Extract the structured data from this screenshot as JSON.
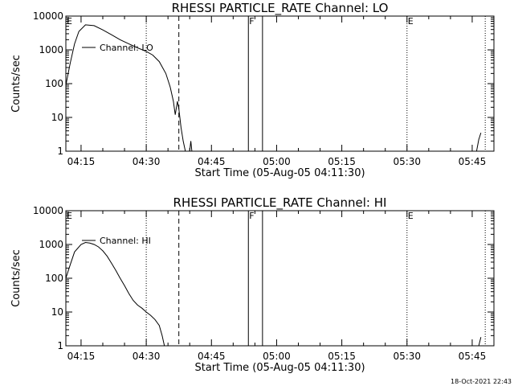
{
  "chart_data": [
    {
      "type": "line",
      "title": "RHESSI PARTICLE_RATE Channel: LO",
      "xlabel": "Start Time (05-Aug-05 04:11:30)",
      "ylabel": "Counts/sec",
      "yscale": "log",
      "ylim": [
        1,
        10000
      ],
      "xlim": [
        "04:11:30",
        "05:50:00"
      ],
      "x_ticks": [
        "04:15",
        "04:30",
        "04:45",
        "05:00",
        "05:15",
        "05:30",
        "05:45"
      ],
      "y_ticks": [
        "1",
        "10",
        "100",
        "1000",
        "10000"
      ],
      "legend": {
        "position": "top-left",
        "entries": [
          "Channel: LO"
        ]
      },
      "series": [
        {
          "name": "Channel: LO",
          "points": [
            [
              "04:11:30",
              90
            ],
            [
              "04:12:30",
              400
            ],
            [
              "04:13:30",
              1500
            ],
            [
              "04:14:30",
              3500
            ],
            [
              "04:16:00",
              5500
            ],
            [
              "04:18:00",
              5200
            ],
            [
              "04:20:00",
              3900
            ],
            [
              "04:22:00",
              2800
            ],
            [
              "04:24:00",
              2000
            ],
            [
              "04:26:00",
              1500
            ],
            [
              "04:28:00",
              1150
            ],
            [
              "04:30:00",
              900
            ],
            [
              "04:31:30",
              700
            ],
            [
              "04:33:00",
              450
            ],
            [
              "04:34:30",
              200
            ],
            [
              "04:35:30",
              80
            ],
            [
              "04:36:15",
              30
            ],
            [
              "04:36:40",
              12
            ],
            [
              "04:37:10",
              30
            ],
            [
              "04:37:30",
              18
            ],
            [
              "04:38:00",
              5
            ],
            [
              "04:38:30",
              2
            ],
            [
              "04:39:00",
              1
            ]
          ]
        },
        {
          "name": "",
          "points": [
            [
              "04:40:00",
              1
            ],
            [
              "04:40:15",
              2
            ],
            [
              "04:40:30",
              1
            ]
          ]
        },
        {
          "name": "",
          "points": [
            [
              "05:46:00",
              1
            ],
            [
              "05:46:30",
              2.2
            ],
            [
              "05:47:00",
              3.5
            ]
          ]
        }
      ],
      "markers": {
        "dotted": [
          "04:30:00",
          "05:30:00",
          "05:48:00"
        ],
        "dashed": [
          "04:37:30"
        ],
        "solid": [
          "04:53:30",
          "04:56:45"
        ]
      },
      "flags": [
        {
          "label": "E",
          "time": "04:11:30"
        },
        {
          "label": "F",
          "time": "04:53:30"
        },
        {
          "label": "E",
          "time": "05:30:00"
        }
      ]
    },
    {
      "type": "line",
      "title": "RHESSI PARTICLE_RATE Channel: HI",
      "xlabel": "Start Time (05-Aug-05 04:11:30)",
      "ylabel": "Counts/sec",
      "yscale": "log",
      "ylim": [
        1,
        10000
      ],
      "xlim": [
        "04:11:30",
        "05:50:00"
      ],
      "x_ticks": [
        "04:15",
        "04:30",
        "04:45",
        "05:00",
        "05:15",
        "05:30",
        "05:45"
      ],
      "y_ticks": [
        "1",
        "10",
        "100",
        "1000",
        "10000"
      ],
      "legend": {
        "position": "top-left",
        "entries": [
          "Channel: HI"
        ]
      },
      "series": [
        {
          "name": "Channel: HI",
          "points": [
            [
              "04:11:30",
              100
            ],
            [
              "04:12:30",
              250
            ],
            [
              "04:13:30",
              600
            ],
            [
              "04:15:00",
              1000
            ],
            [
              "04:16:00",
              1150
            ],
            [
              "04:17:00",
              1100
            ],
            [
              "04:18:00",
              1000
            ],
            [
              "04:19:00",
              850
            ],
            [
              "04:20:00",
              650
            ],
            [
              "04:21:00",
              450
            ],
            [
              "04:22:00",
              280
            ],
            [
              "04:23:00",
              170
            ],
            [
              "04:24:00",
              100
            ],
            [
              "04:25:00",
              60
            ],
            [
              "04:26:00",
              35
            ],
            [
              "04:27:00",
              22
            ],
            [
              "04:28:00",
              16
            ],
            [
              "04:29:00",
              13
            ],
            [
              "04:30:00",
              10
            ],
            [
              "04:31:00",
              8
            ],
            [
              "04:32:00",
              6
            ],
            [
              "04:33:00",
              4
            ],
            [
              "04:33:40",
              2
            ],
            [
              "04:34:10",
              1
            ]
          ]
        },
        {
          "name": "",
          "points": [
            [
              "05:46:30",
              1
            ],
            [
              "05:47:00",
              1.8
            ]
          ]
        }
      ],
      "markers": {
        "dotted": [
          "04:30:00",
          "05:30:00",
          "05:48:00"
        ],
        "dashed": [
          "04:37:30"
        ],
        "solid": [
          "04:53:30",
          "04:56:45"
        ]
      },
      "flags": [
        {
          "label": "E",
          "time": "04:11:30"
        },
        {
          "label": "F",
          "time": "04:53:30"
        },
        {
          "label": "E",
          "time": "05:30:00"
        }
      ]
    }
  ],
  "timestamp": "18-Oct-2021 22:43"
}
